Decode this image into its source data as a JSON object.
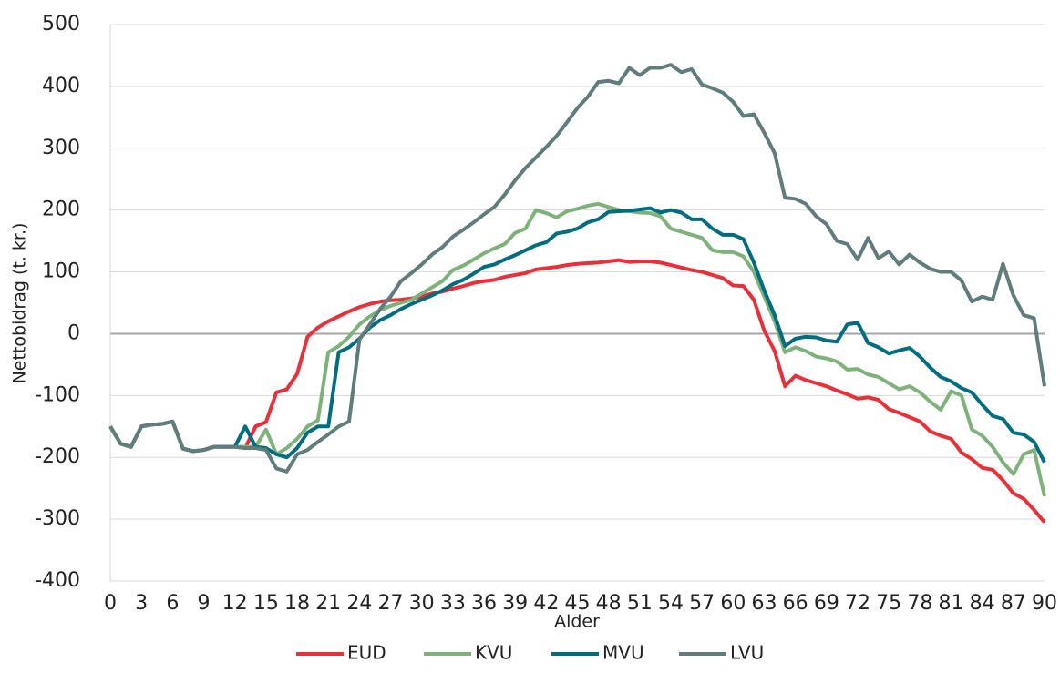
{
  "chart_data": {
    "type": "line",
    "y_label": "Nettobidrag (t. kr.)",
    "x_label": "Alder",
    "x": [
      0,
      1,
      2,
      3,
      4,
      5,
      6,
      7,
      8,
      9,
      10,
      11,
      12,
      13,
      14,
      15,
      16,
      17,
      18,
      19,
      20,
      21,
      22,
      23,
      24,
      25,
      26,
      27,
      28,
      29,
      30,
      31,
      32,
      33,
      34,
      35,
      36,
      37,
      38,
      39,
      40,
      41,
      42,
      43,
      44,
      45,
      46,
      47,
      48,
      49,
      50,
      51,
      52,
      53,
      54,
      55,
      56,
      57,
      58,
      59,
      60,
      61,
      62,
      63,
      64,
      65,
      66,
      67,
      68,
      69,
      70,
      71,
      72,
      73,
      74,
      75,
      76,
      77,
      78,
      79,
      80,
      81,
      82,
      83,
      84,
      85,
      86,
      87,
      88,
      89,
      90
    ],
    "xlim": [
      0,
      90
    ],
    "xticks": [
      0,
      3,
      6,
      9,
      12,
      15,
      18,
      21,
      24,
      27,
      30,
      33,
      36,
      39,
      42,
      45,
      48,
      51,
      54,
      57,
      60,
      63,
      66,
      69,
      72,
      75,
      78,
      81,
      84,
      87,
      90
    ],
    "ylim": [
      -400,
      500
    ],
    "yticks": [
      -400,
      -300,
      -200,
      -100,
      0,
      100,
      200,
      300,
      400,
      500
    ],
    "grid": true,
    "legend": "bottom",
    "series": [
      {
        "name": "EUD",
        "color": "#e8303a",
        "values": [
          -150,
          -178,
          -183,
          -150,
          -147,
          -146,
          -142,
          -186,
          -190,
          -188,
          -183,
          -183,
          -183,
          -185,
          -150,
          -143,
          -95,
          -90,
          -65,
          -5,
          10,
          20,
          28,
          36,
          43,
          48,
          52,
          54,
          55,
          57,
          60,
          65,
          68,
          73,
          77,
          82,
          85,
          87,
          92,
          95,
          98,
          104,
          106,
          108,
          111,
          113,
          114,
          115,
          117,
          119,
          116,
          117,
          117,
          115,
          111,
          107,
          103,
          100,
          95,
          90,
          78,
          77,
          55,
          5,
          -28,
          -85,
          -68,
          -75,
          -80,
          -85,
          -92,
          -98,
          -105,
          -103,
          -107,
          -122,
          -128,
          -135,
          -142,
          -158,
          -165,
          -170,
          -192,
          -203,
          -217,
          -220,
          -237,
          -258,
          -267,
          -285,
          -305
        ]
      },
      {
        "name": "KVU",
        "color": "#7fb27a",
        "values": [
          -150,
          -178,
          -183,
          -150,
          -147,
          -146,
          -142,
          -186,
          -190,
          -188,
          -183,
          -183,
          -183,
          -183,
          -183,
          -155,
          -195,
          -185,
          -170,
          -150,
          -140,
          -30,
          -20,
          -5,
          15,
          28,
          38,
          45,
          50,
          55,
          65,
          75,
          85,
          103,
          110,
          120,
          130,
          138,
          145,
          163,
          170,
          200,
          195,
          188,
          198,
          202,
          207,
          210,
          205,
          200,
          198,
          196,
          195,
          190,
          170,
          165,
          160,
          155,
          135,
          132,
          132,
          125,
          100,
          60,
          20,
          -30,
          -22,
          -28,
          -37,
          -40,
          -45,
          -58,
          -57,
          -66,
          -70,
          -80,
          -90,
          -85,
          -95,
          -110,
          -123,
          -93,
          -100,
          -155,
          -165,
          -183,
          -208,
          -227,
          -195,
          -188,
          -263
        ]
      },
      {
        "name": "MVU",
        "color": "#006d7e",
        "values": [
          -150,
          -178,
          -183,
          -150,
          -147,
          -146,
          -142,
          -186,
          -190,
          -188,
          -183,
          -183,
          -183,
          -150,
          -183,
          -185,
          -195,
          -200,
          -185,
          -160,
          -150,
          -150,
          -30,
          -22,
          -8,
          10,
          22,
          30,
          40,
          48,
          55,
          62,
          70,
          80,
          87,
          97,
          108,
          112,
          120,
          127,
          135,
          143,
          148,
          162,
          165,
          170,
          180,
          185,
          197,
          198,
          199,
          201,
          203,
          196,
          200,
          196,
          185,
          185,
          170,
          160,
          160,
          153,
          115,
          70,
          30,
          -20,
          -8,
          -5,
          -6,
          -11,
          -13,
          15,
          18,
          -15,
          -22,
          -32,
          -27,
          -23,
          -37,
          -55,
          -70,
          -77,
          -88,
          -95,
          -115,
          -133,
          -138,
          -160,
          -163,
          -175,
          -208
        ]
      },
      {
        "name": "LVU",
        "color": "#607d7b",
        "values": [
          -150,
          -178,
          -183,
          -150,
          -147,
          -146,
          -142,
          -186,
          -190,
          -188,
          -183,
          -183,
          -183,
          -185,
          -185,
          -188,
          -218,
          -223,
          -195,
          -188,
          -175,
          -163,
          -150,
          -142,
          -10,
          15,
          40,
          60,
          85,
          98,
          112,
          128,
          140,
          157,
          168,
          180,
          193,
          205,
          225,
          248,
          268,
          285,
          302,
          320,
          342,
          365,
          383,
          407,
          409,
          405,
          430,
          418,
          430,
          430,
          435,
          423,
          428,
          403,
          397,
          390,
          375,
          352,
          355,
          325,
          292,
          220,
          218,
          210,
          190,
          177,
          150,
          145,
          120,
          155,
          122,
          133,
          112,
          128,
          115,
          105,
          100,
          100,
          86,
          52,
          60,
          55,
          113,
          62,
          30,
          25,
          -85
        ]
      }
    ]
  }
}
